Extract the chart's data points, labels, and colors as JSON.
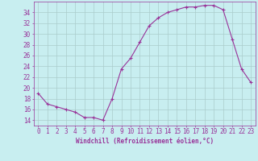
{
  "x": [
    0,
    1,
    2,
    3,
    4,
    5,
    6,
    7,
    8,
    9,
    10,
    11,
    12,
    13,
    14,
    15,
    16,
    17,
    18,
    19,
    20,
    21,
    22,
    23
  ],
  "y": [
    19,
    17,
    16.5,
    16,
    15.5,
    14.5,
    14.5,
    14,
    18,
    23.5,
    25.5,
    28.5,
    31.5,
    33,
    34,
    34.5,
    35,
    35,
    35.3,
    35.3,
    34.5,
    29,
    23.5,
    21
  ],
  "line_color": "#993399",
  "marker": "+",
  "bg_color": "#c8eef0",
  "grid_color": "#aacccc",
  "xlabel": "Windchill (Refroidissement éolien,°C)",
  "ylabel_ticks": [
    14,
    16,
    18,
    20,
    22,
    24,
    26,
    28,
    30,
    32,
    34
  ],
  "ylim": [
    13.0,
    36.0
  ],
  "xlim": [
    -0.5,
    23.5
  ],
  "font_color": "#993399",
  "tick_fontsize": 5.5,
  "xlabel_fontsize": 5.5
}
